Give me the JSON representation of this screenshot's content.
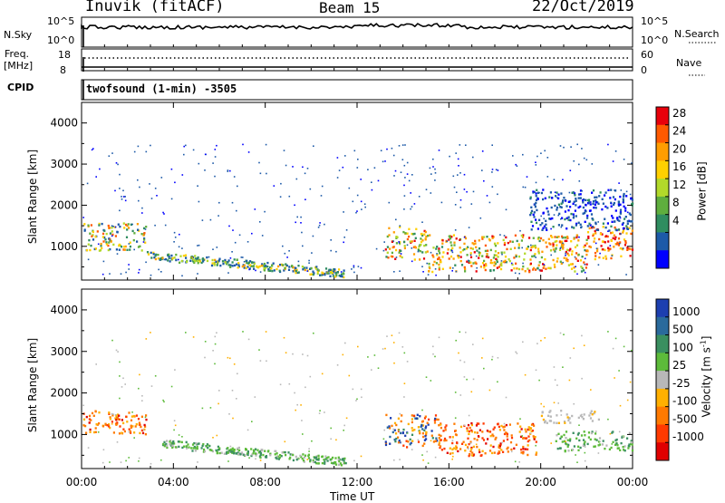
{
  "header": {
    "radar": "Inuvik (fitACF)",
    "beam": "Beam 15",
    "date": "22/Oct/2019"
  },
  "top_panels": {
    "nsky_label": "N.Sky",
    "nsky_ticks": [
      "10^5",
      "10^0"
    ],
    "nsearch_label": "N.Search",
    "nsearch_ticks": [
      "10^5",
      "10^0"
    ],
    "freq_label": "Freq.",
    "freq_unit": "[MHz]",
    "freq_ticks": [
      "18",
      "8"
    ],
    "nave_label": "Nave",
    "nave_ticks": [
      "60",
      "0"
    ],
    "cpid_label": "CPID",
    "cpid_program": "twofsound (1-min) -3505"
  },
  "chart_data": [
    {
      "type": "heatmap",
      "name": "power",
      "ylabel": "Slant Range [km]",
      "ylim": [
        180,
        4500
      ],
      "y_ticks": [
        "1000",
        "2000",
        "3000",
        "4000"
      ],
      "colorbar": {
        "label": "Power [dB]",
        "ticks": [
          "28",
          "24",
          "20",
          "16",
          "12",
          "8",
          "4"
        ],
        "colors": [
          "#e8000b",
          "#ff5a00",
          "#ff9d00",
          "#ffd000",
          "#b2d92a",
          "#5fae3e",
          "#2f8d60",
          "#1d5aa8",
          "#0000ff"
        ]
      },
      "regions": [
        {
          "t": [
            0.0,
            2.8
          ],
          "r": [
            900,
            1600
          ],
          "level": "mixed-high"
        },
        {
          "t": [
            2.8,
            11.5
          ],
          "r": [
            250,
            800
          ],
          "level": "mid"
        },
        {
          "t": [
            13.2,
            15.0
          ],
          "r": [
            700,
            1500
          ],
          "level": "high"
        },
        {
          "t": [
            15.0,
            22.0
          ],
          "r": [
            400,
            1300
          ],
          "level": "high"
        },
        {
          "t": [
            22.0,
            24.0
          ],
          "r": [
            700,
            1500
          ],
          "level": "very-high"
        },
        {
          "t": [
            19.5,
            24.0
          ],
          "r": [
            1400,
            2400
          ],
          "level": "low"
        }
      ]
    },
    {
      "type": "heatmap",
      "name": "velocity",
      "xlabel": "Time UT",
      "ylabel": "Slant Range [km]",
      "ylim": [
        180,
        4500
      ],
      "x_ticks": [
        "00:00",
        "04:00",
        "08:00",
        "12:00",
        "16:00",
        "20:00",
        "00:00"
      ],
      "y_ticks": [
        "1000",
        "2000",
        "3000",
        "4000"
      ],
      "colorbar": {
        "label": "Velocity [m s^-1]",
        "ticks": [
          "1000",
          "500",
          "100",
          "25",
          "-25",
          "-100",
          "-500",
          "-1000"
        ],
        "colors": [
          "#1d3fb0",
          "#2a6a9c",
          "#3a8f60",
          "#5dbb3a",
          "#b8b8b8",
          "#ffb000",
          "#ff7a00",
          "#ff3a00",
          "#e00000"
        ]
      },
      "regions": [
        {
          "t": [
            0.0,
            2.8
          ],
          "r": [
            1000,
            1600
          ],
          "level": "negative"
        },
        {
          "t": [
            3.5,
            11.5
          ],
          "r": [
            250,
            800
          ],
          "level": "positive-low"
        },
        {
          "t": [
            13.2,
            15.5
          ],
          "r": [
            700,
            1500
          ],
          "level": "mixed"
        },
        {
          "t": [
            15.5,
            19.8
          ],
          "r": [
            500,
            1300
          ],
          "level": "negative"
        },
        {
          "t": [
            20.0,
            22.5
          ],
          "r": [
            1300,
            1600
          ],
          "level": "near-zero"
        },
        {
          "t": [
            20.5,
            24.0
          ],
          "r": [
            600,
            1100
          ],
          "level": "positive-low"
        }
      ]
    }
  ]
}
